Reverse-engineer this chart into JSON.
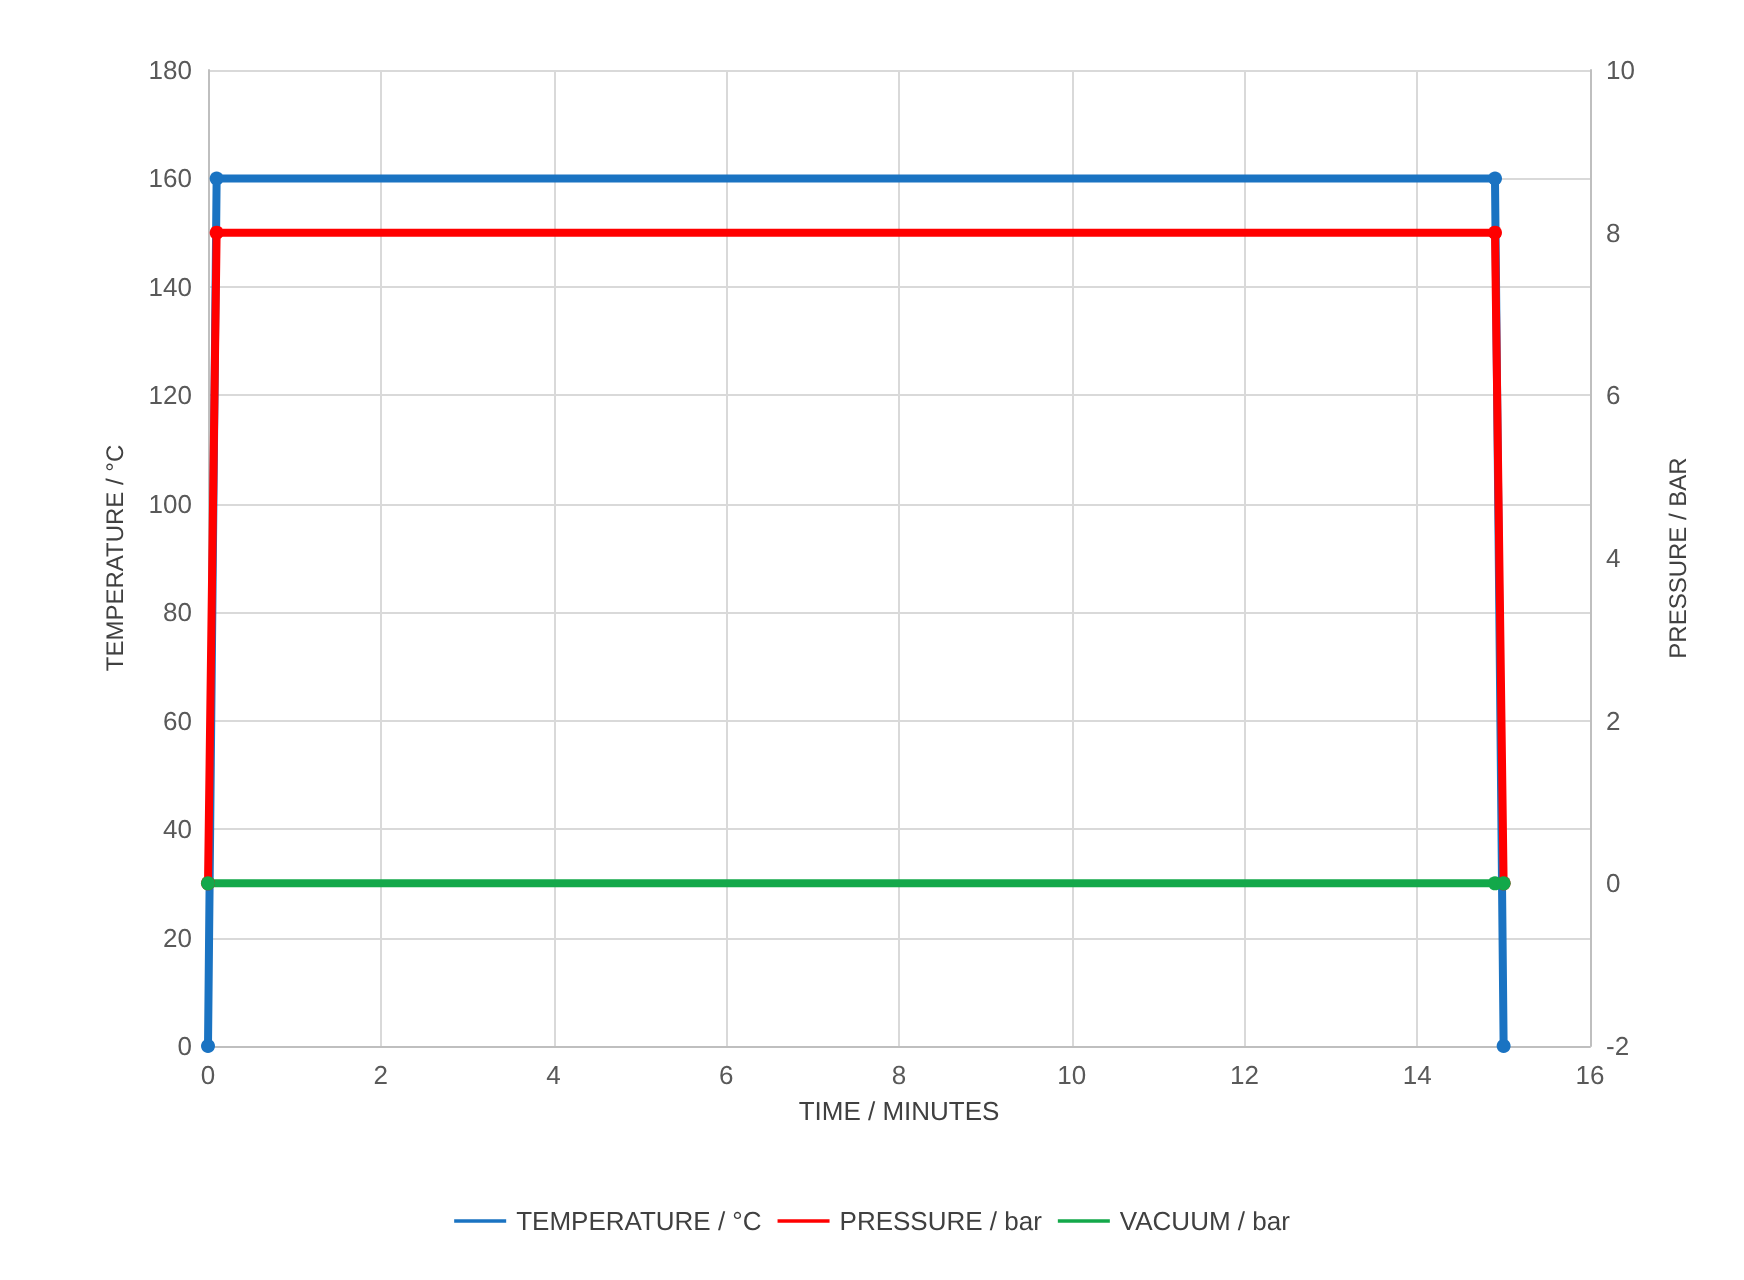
{
  "chart_data": {
    "type": "line",
    "xlabel": "TIME / MINUTES",
    "ylabel": "TEMPERATURE / °C",
    "y2label": "PRESSURE / BAR",
    "xlim": [
      0,
      16
    ],
    "xticks": [
      0,
      2,
      4,
      6,
      8,
      10,
      12,
      14,
      16
    ],
    "ylim": [
      0,
      180
    ],
    "yticks": [
      0,
      20,
      40,
      60,
      80,
      100,
      120,
      140,
      160,
      180
    ],
    "y2lim": [
      -2,
      10
    ],
    "y2ticks": [
      -2,
      0,
      2,
      4,
      6,
      8,
      10
    ],
    "grid": true,
    "legend": "bottom",
    "marker": "circle",
    "line_style": "solid",
    "series": [
      {
        "name": "TEMPERATURE / °C",
        "color": "#1a73c2",
        "x": [
          0,
          0.1,
          14.9,
          15
        ],
        "values": [
          0,
          160,
          160,
          0
        ]
      },
      {
        "name": "PRESSURE / bar",
        "color": "#ff0000",
        "axis": "y2",
        "x": [
          0,
          0.1,
          14.9,
          15
        ],
        "values": [
          0,
          8,
          8,
          0
        ]
      },
      {
        "name": "VACUUM / bar",
        "color": "#13a84a",
        "axis": "y2",
        "x": [
          0,
          14.9,
          15
        ],
        "values": [
          0,
          0,
          0
        ]
      }
    ]
  }
}
